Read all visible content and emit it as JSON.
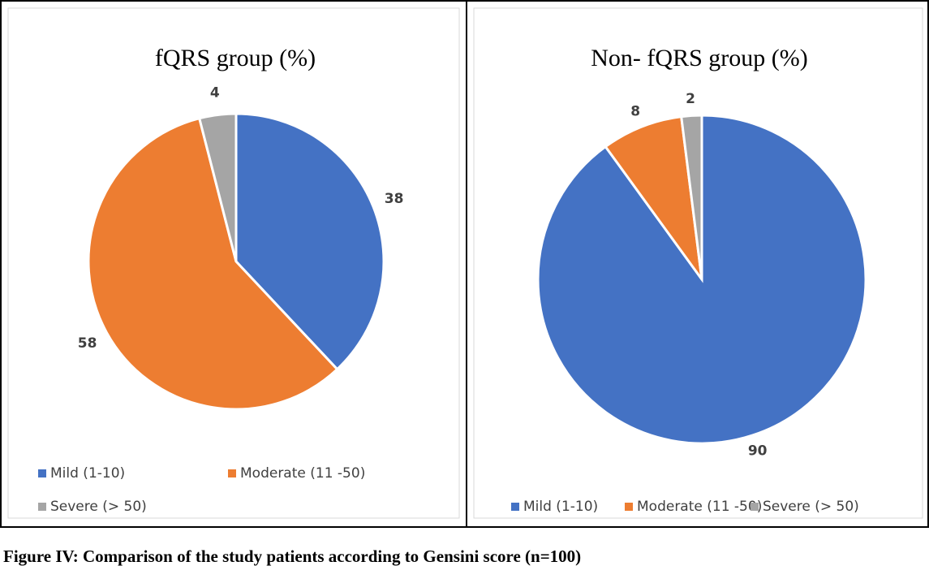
{
  "chart_data": [
    {
      "type": "pie",
      "title": "fQRS group (%)",
      "categories": [
        "Mild (1-10)",
        "Moderate (11 -50)",
        "Severe (> 50)"
      ],
      "values": [
        38,
        58,
        4
      ],
      "colors": [
        "#4472C4",
        "#ED7D31",
        "#A5A5A5"
      ]
    },
    {
      "type": "pie",
      "title": "Non- fQRS group (%)",
      "categories": [
        "Mild (1-10)",
        "Moderate (11 -50)",
        "Severe (> 50)"
      ],
      "values": [
        90,
        8,
        2
      ],
      "colors": [
        "#4472C4",
        "#ED7D31",
        "#A5A5A5"
      ]
    }
  ],
  "caption": "Figure IV: Comparison of the study patients according to Gensini score (n=100)"
}
